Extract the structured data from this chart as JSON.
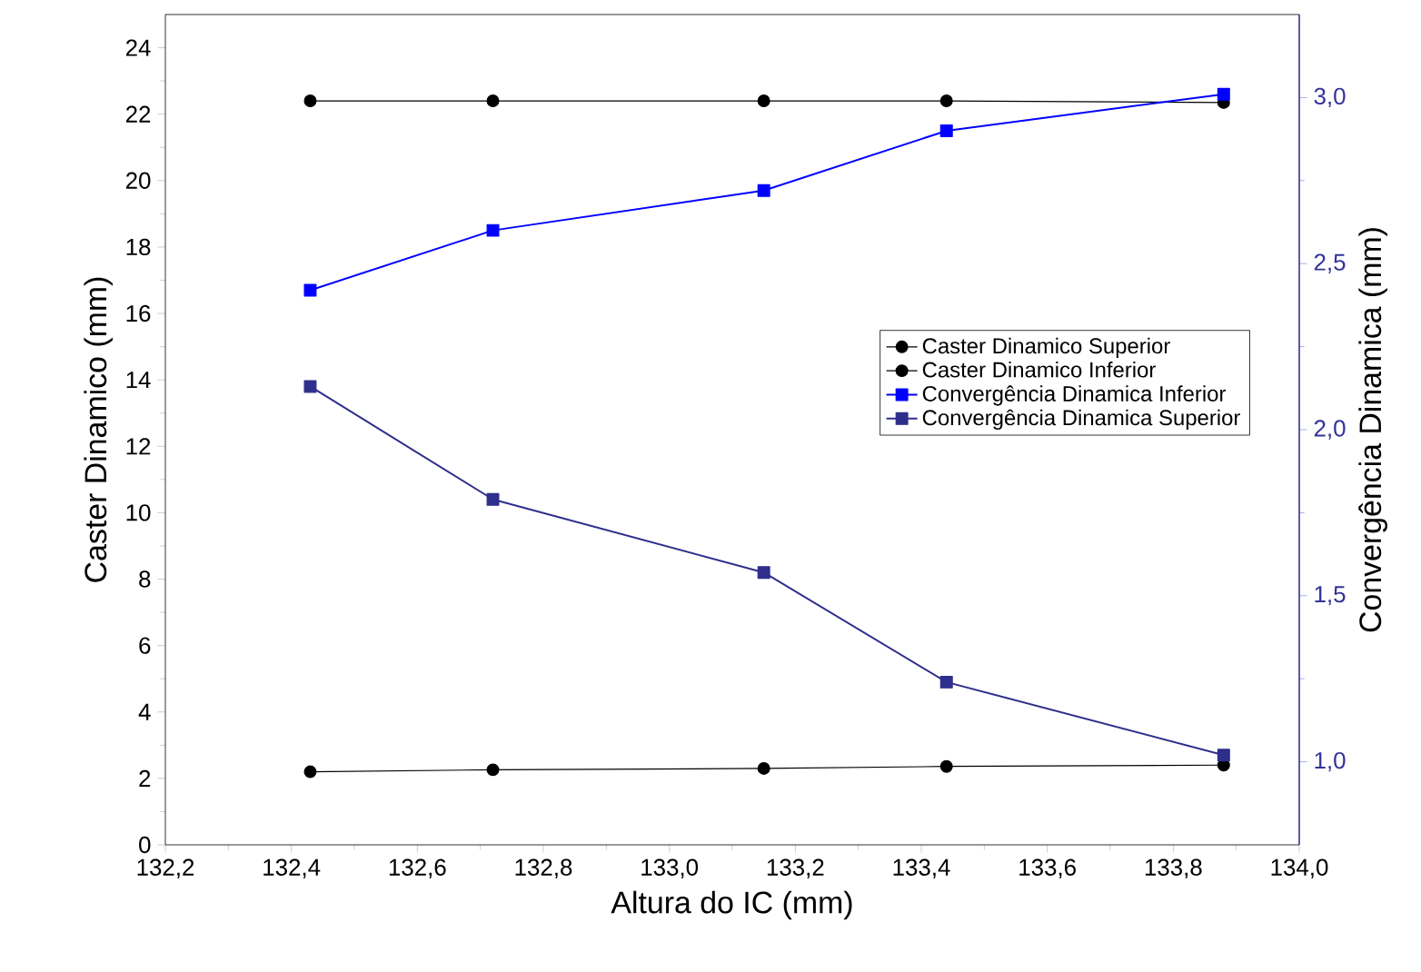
{
  "chart_data": {
    "type": "line",
    "xlabel": "Altura do IC (mm)",
    "ylabel": "Caster Dinamico (mm)",
    "y2label": "Convergência Dinamica (mm)",
    "x": [
      132.43,
      132.72,
      133.15,
      133.44,
      133.88
    ],
    "series": [
      {
        "name": "Caster Dinamico Superior",
        "color": "#000000",
        "marker": "circle",
        "values": [
          2.2,
          2.26,
          2.3,
          2.36,
          2.4
        ]
      },
      {
        "name": "Caster Dinamico Inferior",
        "color": "#000000",
        "marker": "circle",
        "values": [
          22.4,
          22.4,
          22.4,
          22.4,
          22.35
        ]
      },
      {
        "name": "Convergência Dinamica Inferior",
        "color": "#0000ff",
        "marker": "square",
        "axis": "y2",
        "values": [
          2.42,
          2.6,
          2.72,
          2.9,
          3.01
        ]
      },
      {
        "name": "Convergência Dinamica Superior",
        "color": "#2e2e8c",
        "marker": "square",
        "axis": "y2",
        "values": [
          2.13,
          1.79,
          1.57,
          1.24,
          1.02
        ]
      }
    ],
    "xlim": [
      132.2,
      134.0
    ],
    "xticks": [
      {
        "value": 132.2,
        "label": "132,2"
      },
      {
        "value": 132.4,
        "label": "132,4"
      },
      {
        "value": 132.6,
        "label": "132,6"
      },
      {
        "value": 132.8,
        "label": "132,8"
      },
      {
        "value": 133.0,
        "label": "133,0"
      },
      {
        "value": 133.2,
        "label": "133,2"
      },
      {
        "value": 133.4,
        "label": "133,4"
      },
      {
        "value": 133.6,
        "label": "133,6"
      },
      {
        "value": 133.8,
        "label": "133,8"
      },
      {
        "value": 134.0,
        "label": "134,0"
      }
    ],
    "ylim": [
      0,
      25
    ],
    "yticks": [
      0,
      2,
      4,
      6,
      8,
      10,
      12,
      14,
      16,
      18,
      20,
      22,
      24
    ],
    "y2lim": [
      0.75,
      3.25
    ],
    "y2ticks": [
      {
        "value": 1.0,
        "label": "1,0"
      },
      {
        "value": 1.5,
        "label": "1,5"
      },
      {
        "value": 2.0,
        "label": "2,0"
      },
      {
        "value": 2.5,
        "label": "2,5"
      },
      {
        "value": 3.0,
        "label": "3,0"
      }
    ],
    "legend": "right",
    "grid": false
  }
}
